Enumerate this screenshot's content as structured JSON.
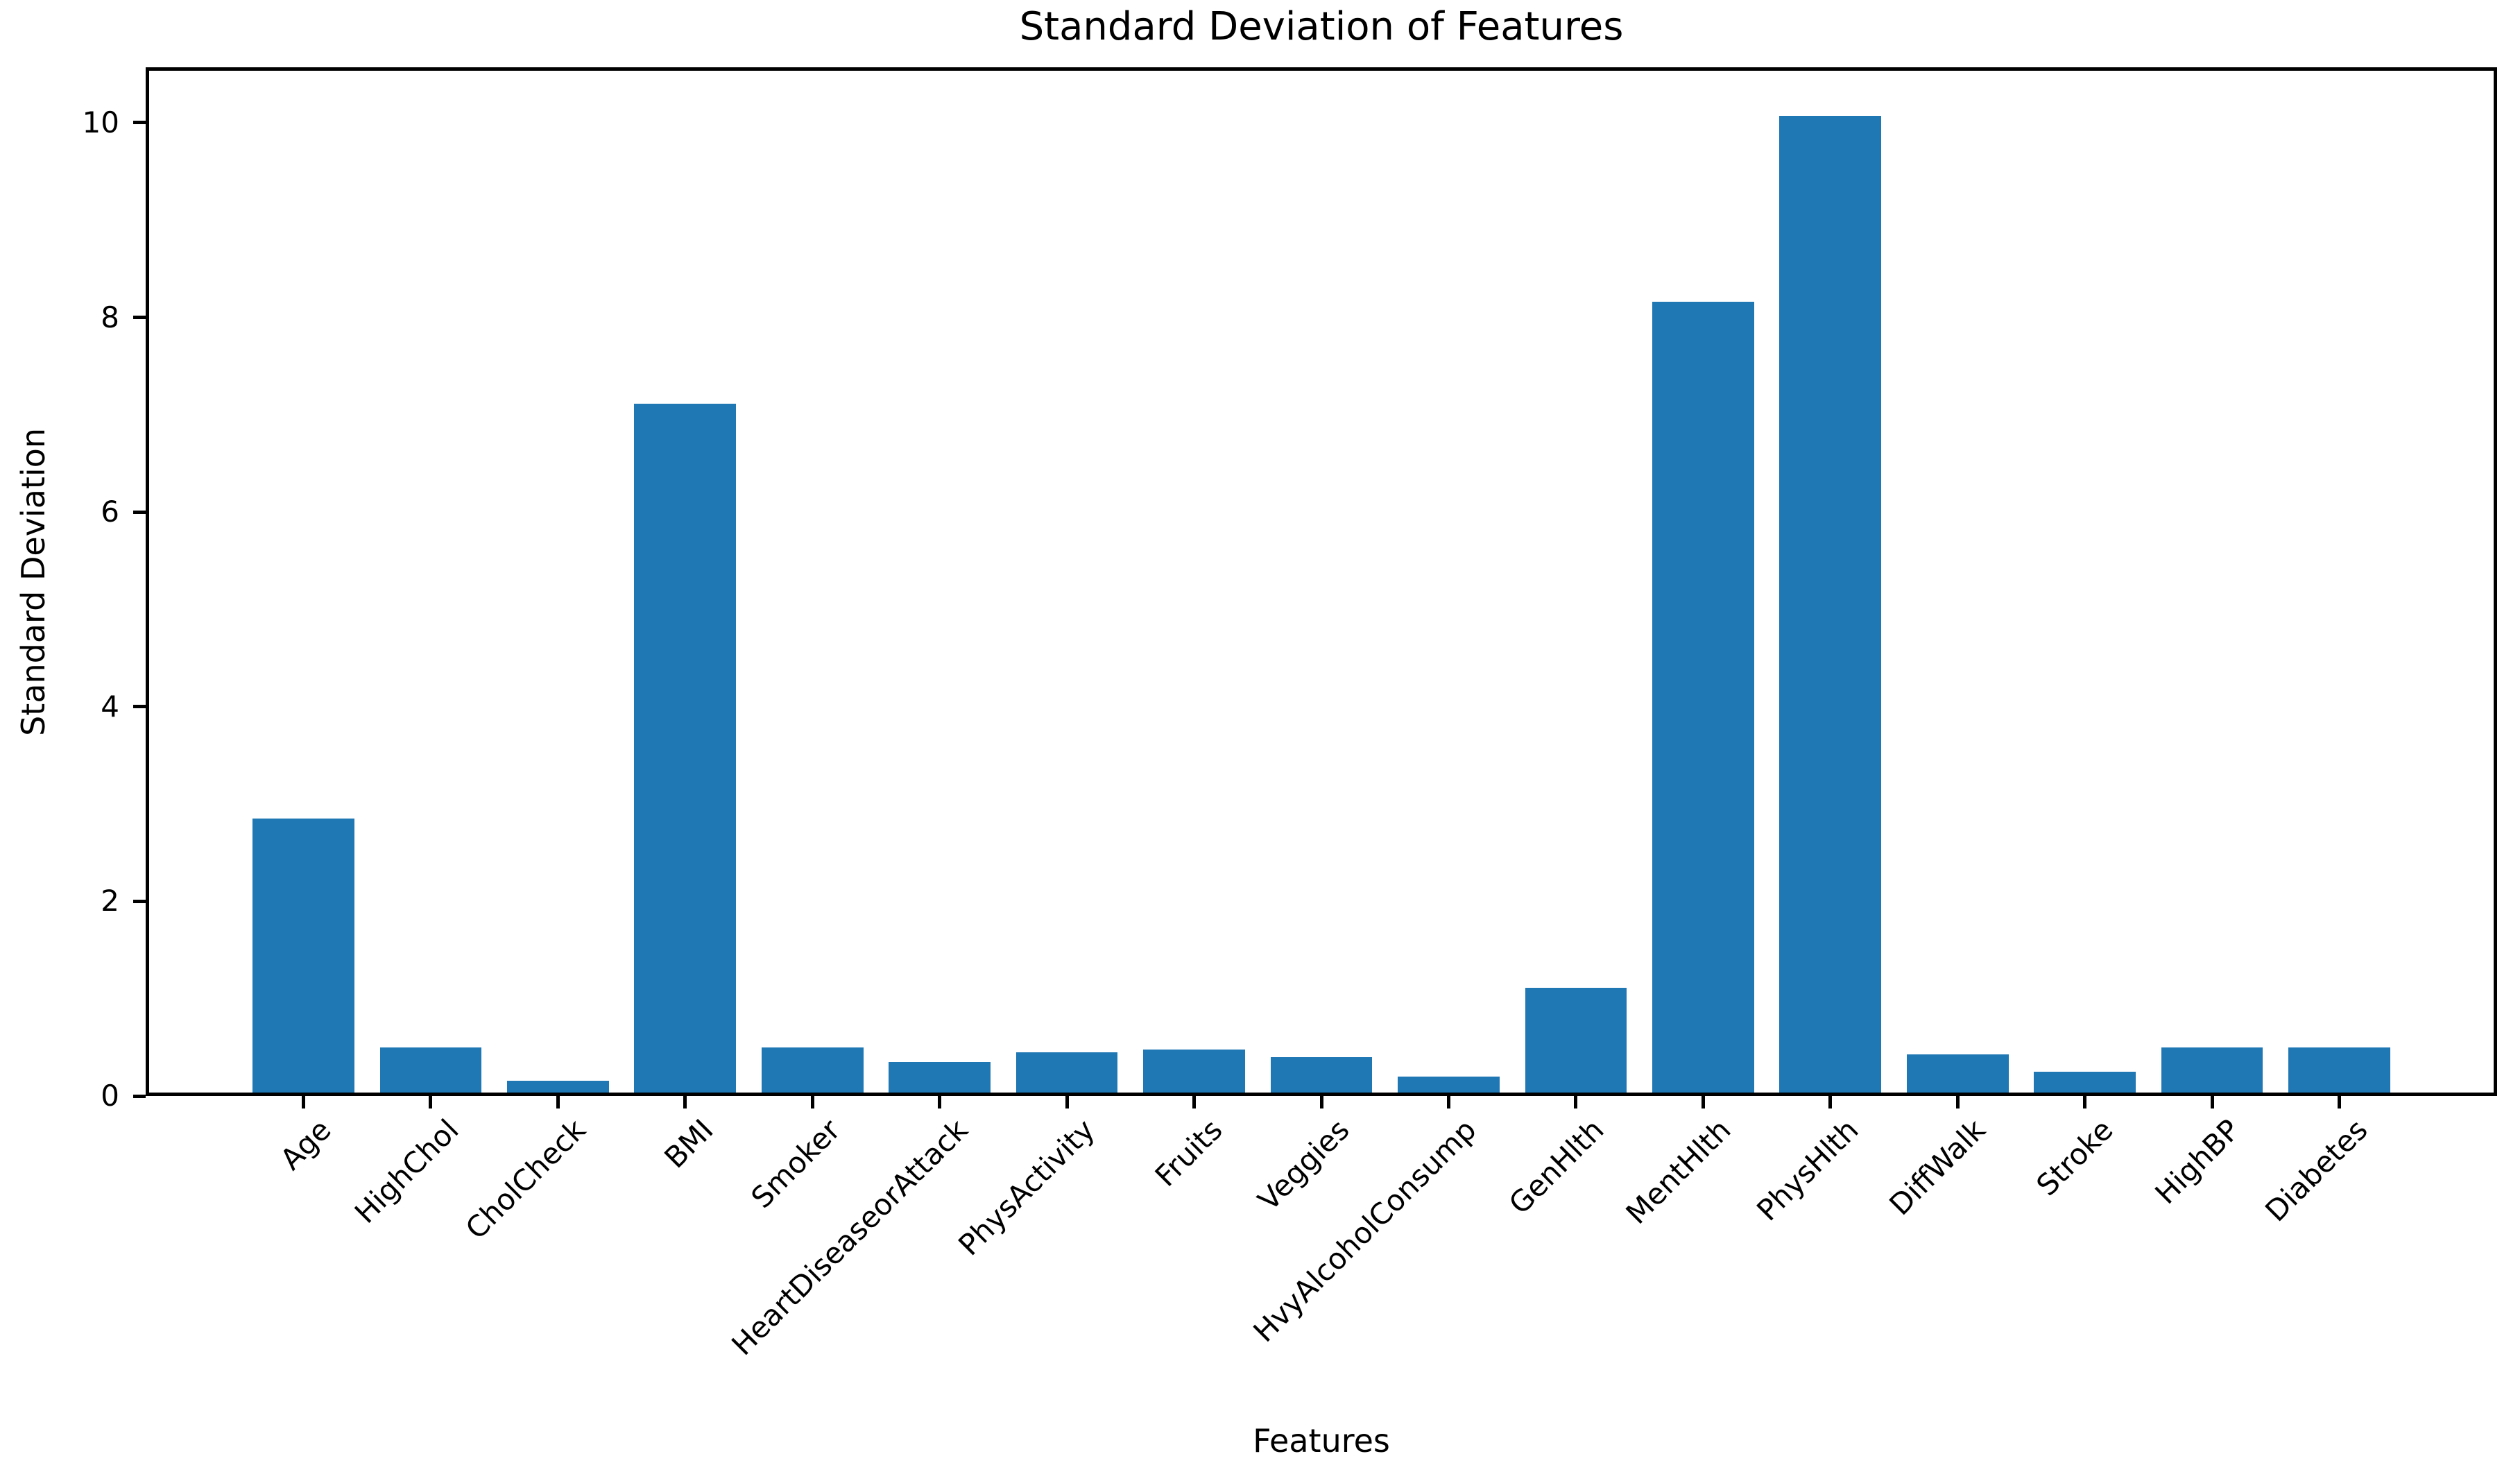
{
  "chart_data": {
    "type": "bar",
    "title": "Standard Deviation of Features",
    "xlabel": "Features",
    "ylabel": "Standard Deviation",
    "categories": [
      "Age",
      "HighChol",
      "CholCheck",
      "BMI",
      "Smoker",
      "HeartDiseaseorAttack",
      "PhysActivity",
      "Fruits",
      "Veggies",
      "HvyAlcoholConsump",
      "GenHlth",
      "MentHlth",
      "PhysHlth",
      "DiffWalk",
      "Stroke",
      "HighBP",
      "Diabetes"
    ],
    "values": [
      2.85,
      0.5,
      0.16,
      7.11,
      0.5,
      0.35,
      0.45,
      0.48,
      0.4,
      0.2,
      1.11,
      8.16,
      10.07,
      0.43,
      0.25,
      0.5,
      0.5
    ],
    "yticks": [
      0,
      2,
      4,
      6,
      8,
      10
    ],
    "ylim": [
      0,
      10.57
    ],
    "bar_color": "#1f77b4",
    "axis_color": "#000000",
    "grid": false,
    "legend": null,
    "tick_rotation_deg": 45
  }
}
